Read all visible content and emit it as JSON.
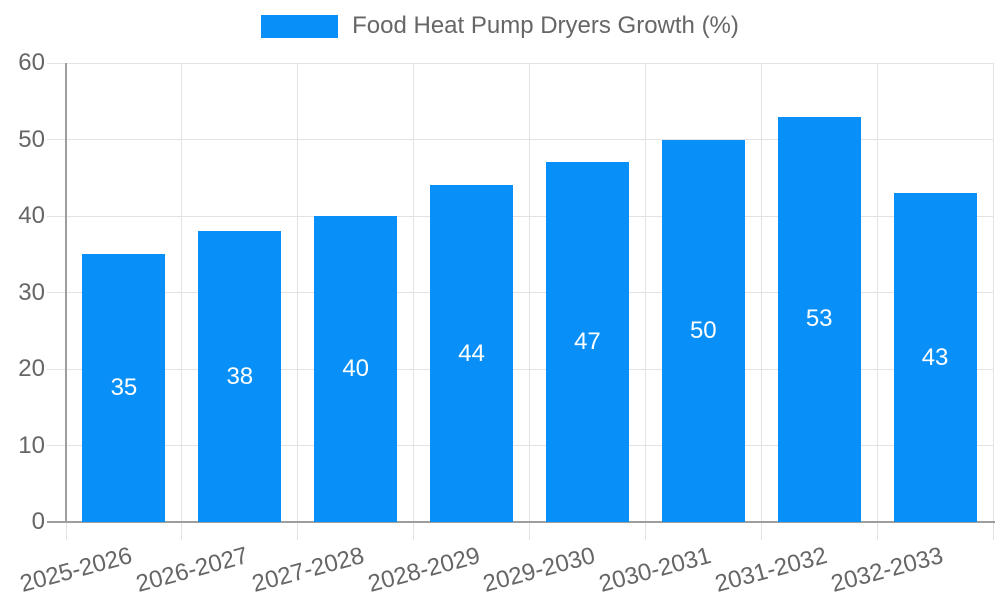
{
  "chart_data": {
    "type": "bar",
    "title": "",
    "categories": [
      "2025-2026",
      "2026-2027",
      "2027-2028",
      "2028-2029",
      "2029-2030",
      "2030-2031",
      "2031-2032",
      "2032-2033"
    ],
    "series": [
      {
        "name": "Food Heat Pump Dryers Growth (%)",
        "values": [
          35,
          38,
          40,
          44,
          47,
          50,
          53,
          43
        ]
      }
    ],
    "xlabel": "",
    "ylabel": "",
    "ylim": [
      0,
      60
    ],
    "yticks": [
      0,
      10,
      20,
      30,
      40,
      50,
      60
    ],
    "grid": true,
    "legend_position": "top",
    "value_labels_position": "inside-center",
    "x_tick_rotation_deg": -15
  },
  "style": {
    "bar_color": "#0990f8",
    "grid_color": "#e3e3e3",
    "axis_color": "#9e9e9e",
    "tick_label_color": "#666666",
    "legend_text_color": "#666666",
    "value_label_color": "#ffffff",
    "background": "#ffffff"
  }
}
